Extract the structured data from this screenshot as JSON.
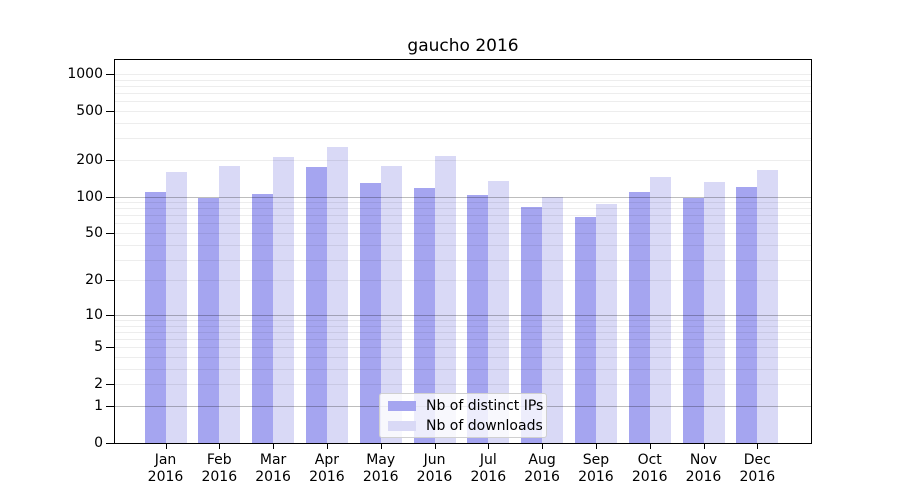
{
  "title": "gaucho 2016",
  "chart_data": {
    "type": "bar",
    "title": "gaucho 2016",
    "categories": [
      "Jan",
      "Feb",
      "Mar",
      "Apr",
      "May",
      "Jun",
      "Jul",
      "Aug",
      "Sep",
      "Oct",
      "Nov",
      "Dec"
    ],
    "category_year": "2016",
    "series": [
      {
        "name": "Nb of distinct IPs",
        "color": "#a5a5f0",
        "values": [
          108,
          98,
          105,
          175,
          128,
          117,
          102,
          82,
          68,
          108,
          97,
          120
        ]
      },
      {
        "name": "Nb of downloads",
        "color": "#d9d9f6",
        "values": [
          160,
          179,
          212,
          255,
          177,
          214,
          134,
          99,
          87,
          145,
          131,
          164
        ]
      }
    ],
    "y_scale": "log10(value+1)",
    "ylim": [
      0,
      1325
    ],
    "y_ticks": [
      1000,
      500,
      200,
      100,
      50,
      20,
      10,
      5,
      2,
      1,
      0
    ],
    "y_major_gridlines": [
      1,
      10,
      100
    ],
    "y_minor_gridlines": [
      2,
      3,
      4,
      5,
      6,
      7,
      8,
      9,
      20,
      30,
      40,
      50,
      60,
      70,
      80,
      90,
      200,
      300,
      400,
      500,
      600,
      700,
      800,
      900,
      1000
    ],
    "xlabel": "",
    "ylabel": "",
    "grid": true,
    "legend_position": "lower center"
  }
}
